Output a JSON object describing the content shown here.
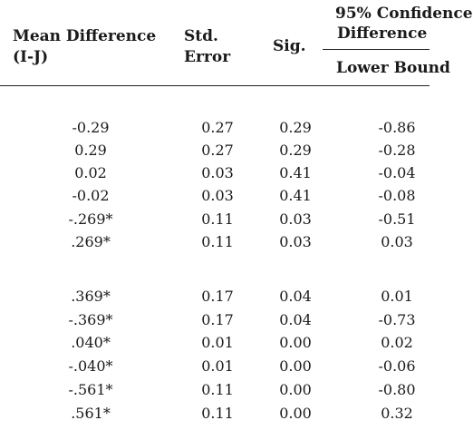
{
  "headers": {
    "mean_difference": "Mean Difference",
    "mean_difference_sub": "(I-J)",
    "std_error_line1": "Std.",
    "std_error_line2": "Error",
    "sig": "Sig.",
    "ci_line1": "95% Confidence",
    "ci_line2": "Difference",
    "lower_bound": "Lower Bound"
  },
  "rows": [
    {
      "mean_diff": "-0.29",
      "std_error": "0.27",
      "sig": "0.29",
      "lower": "-0.86"
    },
    {
      "mean_diff": "0.29",
      "std_error": "0.27",
      "sig": "0.29",
      "lower": "-0.28"
    },
    {
      "mean_diff": "0.02",
      "std_error": "0.03",
      "sig": "0.41",
      "lower": "-0.04"
    },
    {
      "mean_diff": "-0.02",
      "std_error": "0.03",
      "sig": "0.41",
      "lower": "-0.08"
    },
    {
      "mean_diff": "-.269*",
      "std_error": "0.11",
      "sig": "0.03",
      "lower": "-0.51"
    },
    {
      "mean_diff": ".269*",
      "std_error": "0.11",
      "sig": "0.03",
      "lower": "0.03"
    },
    {
      "mean_diff": ".369*",
      "std_error": "0.17",
      "sig": "0.04",
      "lower": "0.01"
    },
    {
      "mean_diff": "-.369*",
      "std_error": "0.17",
      "sig": "0.04",
      "lower": "-0.73"
    },
    {
      "mean_diff": ".040*",
      "std_error": "0.01",
      "sig": "0.00",
      "lower": "0.02"
    },
    {
      "mean_diff": "-.040*",
      "std_error": "0.01",
      "sig": "0.00",
      "lower": "-0.06"
    },
    {
      "mean_diff": "-.561*",
      "std_error": "0.11",
      "sig": "0.00",
      "lower": "-0.80"
    },
    {
      "mean_diff": ".561*",
      "std_error": "0.11",
      "sig": "0.00",
      "lower": "0.32"
    }
  ]
}
